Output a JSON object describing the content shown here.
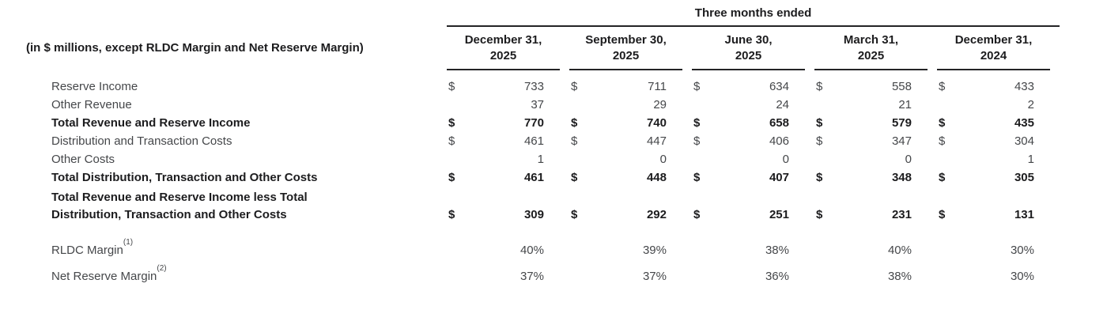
{
  "table": {
    "unit_label": "(in $ millions, except RLDC Margin and Net Reserve Margin)",
    "group_header": "Three months ended",
    "columns": [
      {
        "line1": "December 31,",
        "line2": "2025"
      },
      {
        "line1": "September 30,",
        "line2": "2025"
      },
      {
        "line1": "June 30,",
        "line2": "2025"
      },
      {
        "line1": "March 31,",
        "line2": "2025"
      },
      {
        "line1": "December 31,",
        "line2": "2024"
      }
    ],
    "currency_symbol": "$",
    "rows": [
      {
        "label": "Reserve Income",
        "bold": false,
        "dollar": true,
        "values": [
          "733",
          "711",
          "634",
          "558",
          "433"
        ]
      },
      {
        "label": "Other Revenue",
        "bold": false,
        "dollar": false,
        "values": [
          "37",
          "29",
          "24",
          "21",
          "2"
        ]
      },
      {
        "label": "Total Revenue and Reserve Income",
        "bold": true,
        "dollar": true,
        "values": [
          "770",
          "740",
          "658",
          "579",
          "435"
        ]
      },
      {
        "label": "Distribution and Transaction Costs",
        "bold": false,
        "dollar": true,
        "values": [
          "461",
          "447",
          "406",
          "347",
          "304"
        ]
      },
      {
        "label": "Other Costs",
        "bold": false,
        "dollar": false,
        "values": [
          "1",
          "0",
          "0",
          "0",
          "1"
        ]
      },
      {
        "label": "Total Distribution, Transaction and Other Costs",
        "bold": true,
        "dollar": true,
        "values": [
          "461",
          "448",
          "407",
          "348",
          "305"
        ]
      },
      {
        "label": "Total Revenue and Reserve Income less Total Distribution, Transaction and Other Costs",
        "label_lines": [
          "Total Revenue and Reserve Income less Total",
          "Distribution, Transaction and Other Costs"
        ],
        "bold": true,
        "dollar": true,
        "values": [
          "309",
          "292",
          "251",
          "231",
          "131"
        ]
      },
      {
        "label": "RLDC Margin",
        "superscript": "(1)",
        "bold": false,
        "dollar": false,
        "values": [
          "40%",
          "39%",
          "38%",
          "40%",
          "30%"
        ]
      },
      {
        "label": "Net Reserve Margin",
        "superscript": "(2)",
        "bold": false,
        "dollar": false,
        "values": [
          "37%",
          "37%",
          "36%",
          "38%",
          "30%"
        ]
      }
    ]
  }
}
